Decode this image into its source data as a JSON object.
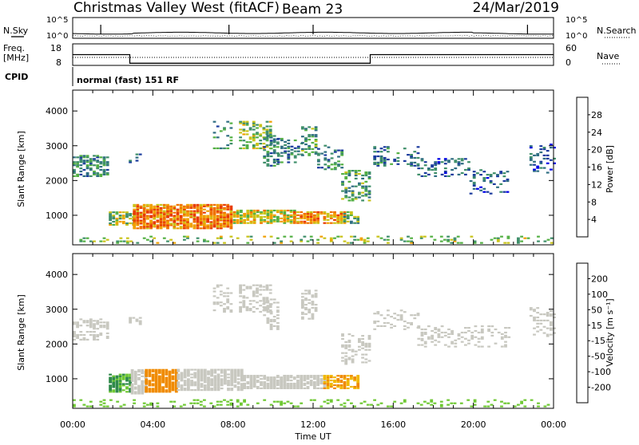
{
  "header": {
    "station": "Christmas Valley West (fitACF)",
    "beam": "Beam 23",
    "date": "24/Mar/2019"
  },
  "aux": {
    "nsky_label": "N.Sky",
    "nsearch_label": "N.Search",
    "noise_ticks": [
      "10^5",
      "10^0"
    ],
    "noise_ticks_right": [
      "10^5",
      "10^0"
    ],
    "freq_label": "Freq.",
    "freq_unit": "[MHz]",
    "freq_ticks": [
      "18",
      "8"
    ],
    "nave_label": "Nave",
    "nave_ticks": [
      "60",
      "0"
    ],
    "cpid_label": "CPID",
    "cpid_text": "normal (fast) 151 RF",
    "freq_data": {
      "x_hours": [
        0,
        2.85,
        2.85,
        14.85,
        14.85,
        24
      ],
      "y_mhz": [
        14.5,
        14.5,
        10.5,
        10.5,
        14.5,
        14.5
      ]
    }
  },
  "colors": {
    "power": [
      "#0000e6",
      "#1c3c9e",
      "#2f6e82",
      "#3f8f6a",
      "#54b044",
      "#c9c31a",
      "#f0a000",
      "#f07000",
      "#e83a00",
      "#e00000"
    ],
    "velocity": [
      "#e00000",
      "#f05000",
      "#f08a00",
      "#f0b800",
      "#c8c8c0",
      "#6ec832",
      "#2f8a4a",
      "#2a6ea0",
      "#1c3ca8"
    ]
  },
  "chart_data": [
    {
      "type": "heatmap",
      "name": "power",
      "ylabel": "Slant Range [km]",
      "yticks": [
        1000,
        2000,
        3000,
        4000
      ],
      "ylim": [
        150,
        4600
      ],
      "xlim": [
        0,
        24
      ],
      "colorbar": {
        "label": "Power [dB]",
        "ticks": [
          "28",
          "24",
          "20",
          "16",
          "12",
          "8",
          "4"
        ],
        "range": [
          0,
          30
        ]
      },
      "regions": [
        {
          "x": [
            0.0,
            1.8
          ],
          "y": [
            2100,
            2700
          ],
          "v": 9,
          "density": 0.55
        },
        {
          "x": [
            2.8,
            3.3
          ],
          "y": [
            2500,
            2750
          ],
          "v": 8,
          "density": 0.4
        },
        {
          "x": [
            7.0,
            8.0
          ],
          "y": [
            2900,
            3700
          ],
          "v": 10,
          "density": 0.25
        },
        {
          "x": [
            8.3,
            9.8
          ],
          "y": [
            2900,
            3700
          ],
          "v": 14,
          "density": 0.5
        },
        {
          "x": [
            9.5,
            10.2
          ],
          "y": [
            2400,
            3300
          ],
          "v": 10,
          "density": 0.4
        },
        {
          "x": [
            10.2,
            11.5
          ],
          "y": [
            2500,
            3200
          ],
          "v": 9,
          "density": 0.3
        },
        {
          "x": [
            11.4,
            12.2
          ],
          "y": [
            2700,
            3550
          ],
          "v": 11,
          "density": 0.45
        },
        {
          "x": [
            12.2,
            13.4
          ],
          "y": [
            2300,
            3000
          ],
          "v": 9,
          "density": 0.3
        },
        {
          "x": [
            13.4,
            14.8
          ],
          "y": [
            1400,
            2300
          ],
          "v": 11,
          "density": 0.4
        },
        {
          "x": [
            15.0,
            17.2
          ],
          "y": [
            2400,
            2950
          ],
          "v": 8,
          "density": 0.3
        },
        {
          "x": [
            17.2,
            19.8
          ],
          "y": [
            2100,
            2600
          ],
          "v": 7,
          "density": 0.3
        },
        {
          "x": [
            19.8,
            21.8
          ],
          "y": [
            1600,
            2300
          ],
          "v": 6,
          "density": 0.25
        },
        {
          "x": [
            22.8,
            24.0
          ],
          "y": [
            2200,
            3050
          ],
          "v": 6,
          "density": 0.25
        },
        {
          "x": [
            1.8,
            3.0
          ],
          "y": [
            700,
            1100
          ],
          "v": 14,
          "density": 0.6
        },
        {
          "x": [
            3.0,
            8.0
          ],
          "y": [
            600,
            1300
          ],
          "v": 22,
          "density": 0.85
        },
        {
          "x": [
            8.0,
            11.0
          ],
          "y": [
            750,
            1150
          ],
          "v": 17,
          "density": 0.8
        },
        {
          "x": [
            11.0,
            13.5
          ],
          "y": [
            750,
            1100
          ],
          "v": 20,
          "density": 0.75
        },
        {
          "x": [
            13.5,
            14.3
          ],
          "y": [
            750,
            1150
          ],
          "v": 12,
          "density": 0.55
        },
        {
          "x": [
            0.0,
            24.0
          ],
          "y": [
            180,
            380
          ],
          "v": 14,
          "density": 0.22
        }
      ]
    },
    {
      "type": "heatmap",
      "name": "velocity",
      "ylabel": "Slant Range [km]",
      "xlabel": "Time UT",
      "xticks": [
        "00:00",
        "04:00",
        "08:00",
        "12:00",
        "16:00",
        "20:00",
        "00:00"
      ],
      "yticks": [
        1000,
        2000,
        3000,
        4000
      ],
      "ylim": [
        150,
        4600
      ],
      "xlim": [
        0,
        24
      ],
      "colorbar": {
        "label": "Velocity [m s⁻¹]",
        "ticks": [
          "200",
          "100",
          "50",
          "15",
          "-15",
          "-50",
          "-100",
          "-200"
        ]
      },
      "regions": [
        {
          "x": [
            0.0,
            1.8
          ],
          "y": [
            2100,
            2700
          ],
          "v": 0,
          "density": 0.5
        },
        {
          "x": [
            2.8,
            3.3
          ],
          "y": [
            2500,
            2750
          ],
          "v": 0,
          "density": 0.4
        },
        {
          "x": [
            7.0,
            8.0
          ],
          "y": [
            2900,
            3700
          ],
          "v": 0,
          "density": 0.25
        },
        {
          "x": [
            8.3,
            9.8
          ],
          "y": [
            2900,
            3700
          ],
          "v": 10,
          "density": 0.5
        },
        {
          "x": [
            9.5,
            10.2
          ],
          "y": [
            2400,
            3300
          ],
          "v": 0,
          "density": 0.4
        },
        {
          "x": [
            11.4,
            12.2
          ],
          "y": [
            2700,
            3550
          ],
          "v": 5,
          "density": 0.45
        },
        {
          "x": [
            13.4,
            14.8
          ],
          "y": [
            1400,
            2300
          ],
          "v": 5,
          "density": 0.4
        },
        {
          "x": [
            15.0,
            17.2
          ],
          "y": [
            2400,
            2950
          ],
          "v": 0,
          "density": 0.25
        },
        {
          "x": [
            17.2,
            21.8
          ],
          "y": [
            1900,
            2500
          ],
          "v": 0,
          "density": 0.25
        },
        {
          "x": [
            22.8,
            24.0
          ],
          "y": [
            2200,
            3050
          ],
          "v": 0,
          "density": 0.25
        },
        {
          "x": [
            1.8,
            2.9
          ],
          "y": [
            600,
            1100
          ],
          "v": 30,
          "density": 0.85
        },
        {
          "x": [
            2.9,
            3.6
          ],
          "y": [
            550,
            1250
          ],
          "v": 0,
          "density": 0.85
        },
        {
          "x": [
            3.6,
            5.2
          ],
          "y": [
            600,
            1250
          ],
          "v": -35,
          "density": 0.85
        },
        {
          "x": [
            5.2,
            8.5
          ],
          "y": [
            650,
            1250
          ],
          "v": 0,
          "density": 0.85
        },
        {
          "x": [
            8.5,
            10.5
          ],
          "y": [
            700,
            1100
          ],
          "v": 5,
          "density": 0.8
        },
        {
          "x": [
            10.5,
            12.5
          ],
          "y": [
            700,
            1100
          ],
          "v": 0,
          "density": 0.8
        },
        {
          "x": [
            12.5,
            14.3
          ],
          "y": [
            700,
            1100
          ],
          "v": -30,
          "density": 0.75
        },
        {
          "x": [
            0.0,
            24.0
          ],
          "y": [
            180,
            380
          ],
          "v": 20,
          "density": 0.2
        }
      ]
    }
  ]
}
